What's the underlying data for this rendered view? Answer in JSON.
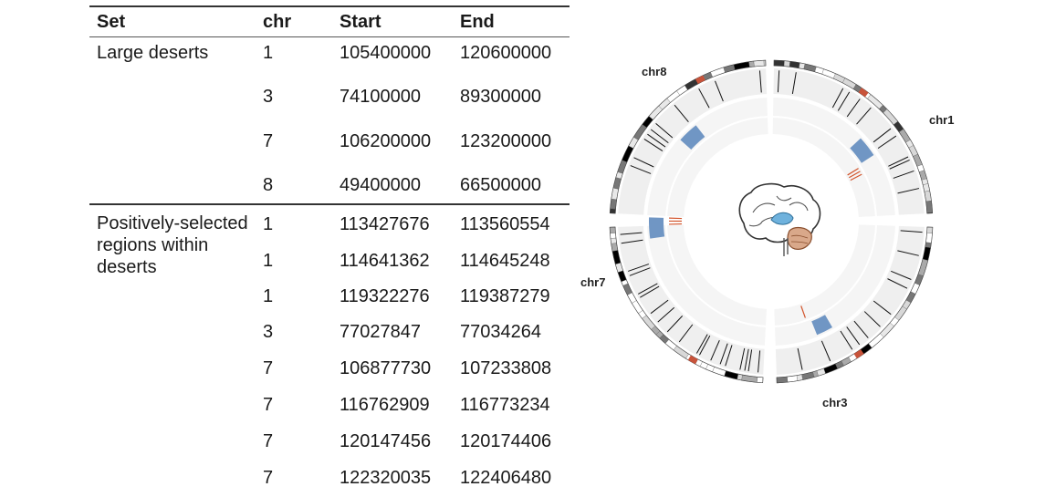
{
  "table": {
    "headers": {
      "set": "Set",
      "chr": "chr",
      "start": "Start",
      "end": "End"
    },
    "groups": [
      {
        "label": "Large deserts",
        "rows": [
          {
            "chr": "1",
            "start": "105400000",
            "end": "120600000"
          },
          {
            "chr": "3",
            "start": "74100000",
            "end": "89300000"
          },
          {
            "chr": "7",
            "start": "106200000",
            "end": "123200000"
          },
          {
            "chr": "8",
            "start": "49400000",
            "end": "66500000"
          }
        ]
      },
      {
        "label": "Positively-selected regions within deserts",
        "rows": [
          {
            "chr": "1",
            "start": "113427676",
            "end": "113560554"
          },
          {
            "chr": "1",
            "start": "114641362",
            "end": "114645248"
          },
          {
            "chr": "1",
            "start": "119322276",
            "end": "119387279"
          },
          {
            "chr": "3",
            "start": "77027847",
            "end": "77034264"
          },
          {
            "chr": "7",
            "start": "106877730",
            "end": "107233808"
          },
          {
            "chr": "7",
            "start": "116762909",
            "end": "116773234"
          },
          {
            "chr": "7",
            "start": "120147456",
            "end": "120174406"
          },
          {
            "chr": "7",
            "start": "122320035",
            "end": "122406480"
          }
        ]
      }
    ]
  },
  "circos": {
    "chromosome_labels": {
      "chr1": "chr1",
      "chr3": "chr3",
      "chr7": "chr7",
      "chr8": "chr8"
    },
    "colors": {
      "desert_block": "#7096c4",
      "selected_region": "#d2532a",
      "track_bg": "#efefef",
      "track_bg_inner": "#f5f5f5",
      "highlight_band": "#c8533a"
    },
    "center_icon": "brain-icon"
  }
}
